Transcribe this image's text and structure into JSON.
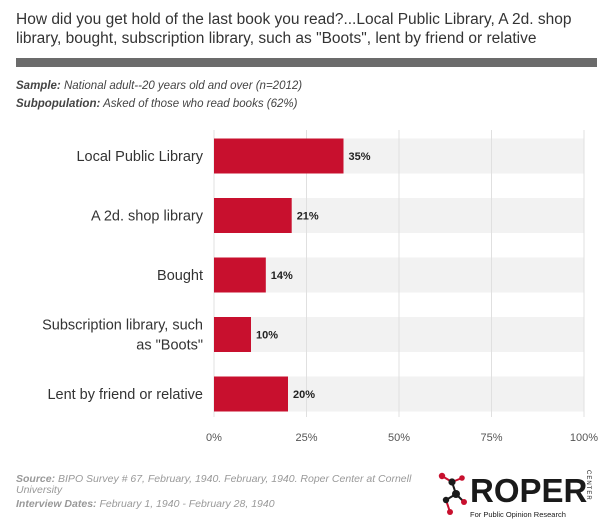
{
  "title": "How did you get hold of the last book you read?...Local Public Library, A 2d. shop library, bought, subscription library, such as \"Boots\", lent by friend or relative",
  "sample": {
    "label": "Sample:",
    "text": "National adult--20 years old and over (n=2012)"
  },
  "subpopulation": {
    "label": "Subpopulation:",
    "text": "Asked of those who read books (62%)"
  },
  "chart_data": {
    "type": "bar",
    "orientation": "horizontal",
    "categories": [
      "Local Public Library",
      "A 2d. shop library",
      "Bought",
      "Subscription library, such as \"Boots\"",
      "Lent by friend or relative"
    ],
    "category_lines": [
      [
        "Local Public Library"
      ],
      [
        "A 2d. shop library"
      ],
      [
        "Bought"
      ],
      [
        "Subscription library, such",
        "as \"Boots\""
      ],
      [
        "Lent by friend or relative"
      ]
    ],
    "values": [
      35,
      21,
      14,
      10,
      20
    ],
    "data_labels": [
      "35%",
      "21%",
      "14%",
      "10%",
      "20%"
    ],
    "xlim": [
      0,
      100
    ],
    "x_ticks": [
      0,
      25,
      50,
      75,
      100
    ],
    "x_tick_labels": [
      "0%",
      "25%",
      "50%",
      "75%",
      "100%"
    ],
    "grid": true,
    "bar_color": "#c8102e",
    "track_color": "#f2f2f2"
  },
  "footer": {
    "source_label": "Source:",
    "source_text": "BIPO Survey # 67, February, 1940. February, 1940. Roper Center at Cornell University",
    "dates_label": "Interview Dates:",
    "dates_text": "February 1, 1940 - February 28, 1940"
  },
  "logo": {
    "name": "ROPER",
    "center": "CENTER",
    "tagline": "For Public Opinion Research"
  }
}
